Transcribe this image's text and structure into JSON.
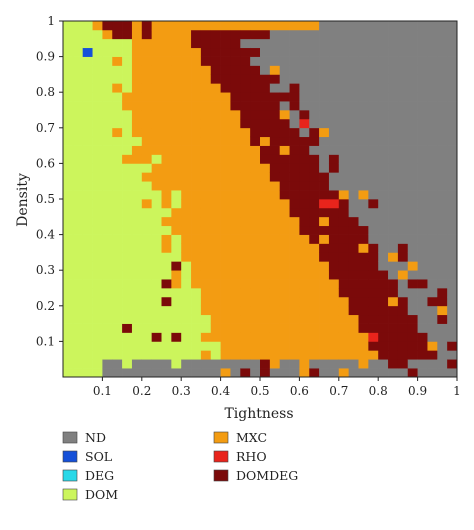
{
  "chart_data": {
    "type": "heatmap",
    "xlabel": "Tightness",
    "ylabel": "Density",
    "xlim": [
      0,
      1
    ],
    "ylim": [
      0,
      1
    ],
    "x_ticks": [
      "0.1",
      "0.2",
      "0.3",
      "0.4",
      "0.5",
      "0.6",
      "0.7",
      "0.8",
      "0.9",
      "1"
    ],
    "x_tick_values": [
      0.1,
      0.2,
      0.3,
      0.4,
      0.5,
      0.6,
      0.7,
      0.8,
      0.9,
      1.0
    ],
    "y_ticks": [
      "0.1",
      "0.2",
      "0.3",
      "0.4",
      "0.5",
      "0.6",
      "0.7",
      "0.8",
      "0.9",
      "1"
    ],
    "y_tick_values": [
      0.1,
      0.2,
      0.3,
      0.4,
      0.5,
      0.6,
      0.7,
      0.8,
      0.9,
      1.0
    ],
    "grid_resolution": 40,
    "legend_placement": "below",
    "categories": [
      {
        "code": "ND",
        "label": "ND",
        "color": "#808080"
      },
      {
        "code": "SOL",
        "label": "SOL",
        "color": "#1550d8"
      },
      {
        "code": "DEG",
        "label": "DEG",
        "color": "#28d8e8"
      },
      {
        "code": "DOM",
        "label": "DOM",
        "color": "#ccf55c"
      },
      {
        "code": "MXC",
        "label": "MXC",
        "color": "#f39c12"
      },
      {
        "code": "RHO",
        "label": "RHO",
        "color": "#e8241c"
      },
      {
        "code": "DOMDEG",
        "label": "DOMDEG",
        "color": "#7b0a0a"
      }
    ],
    "legend_columns": [
      [
        "ND",
        "SOL",
        "DEG",
        "DOM"
      ],
      [
        "MXC",
        "RHO",
        "DOMDEG"
      ]
    ],
    "regions_description_rules": [
      "ND above the DOMDEG band at high tightness and density",
      "DOMDEG band between MXC and ND",
      "MXC band between DOM and DOMDEG",
      "DOM at low tightness and low density",
      "SOL at tightness 0.05, density 0.91"
    ],
    "special_cells": [
      {
        "x": 0.05,
        "y": 0.91,
        "category": "SOL"
      },
      {
        "x": 0.66,
        "y": 0.49,
        "category": "RHO"
      },
      {
        "x": 0.68,
        "y": 0.48,
        "category": "RHO"
      },
      {
        "x": 0.61,
        "y": 0.72,
        "category": "RHO"
      },
      {
        "x": 0.79,
        "y": 0.1,
        "category": "RHO"
      }
    ]
  }
}
